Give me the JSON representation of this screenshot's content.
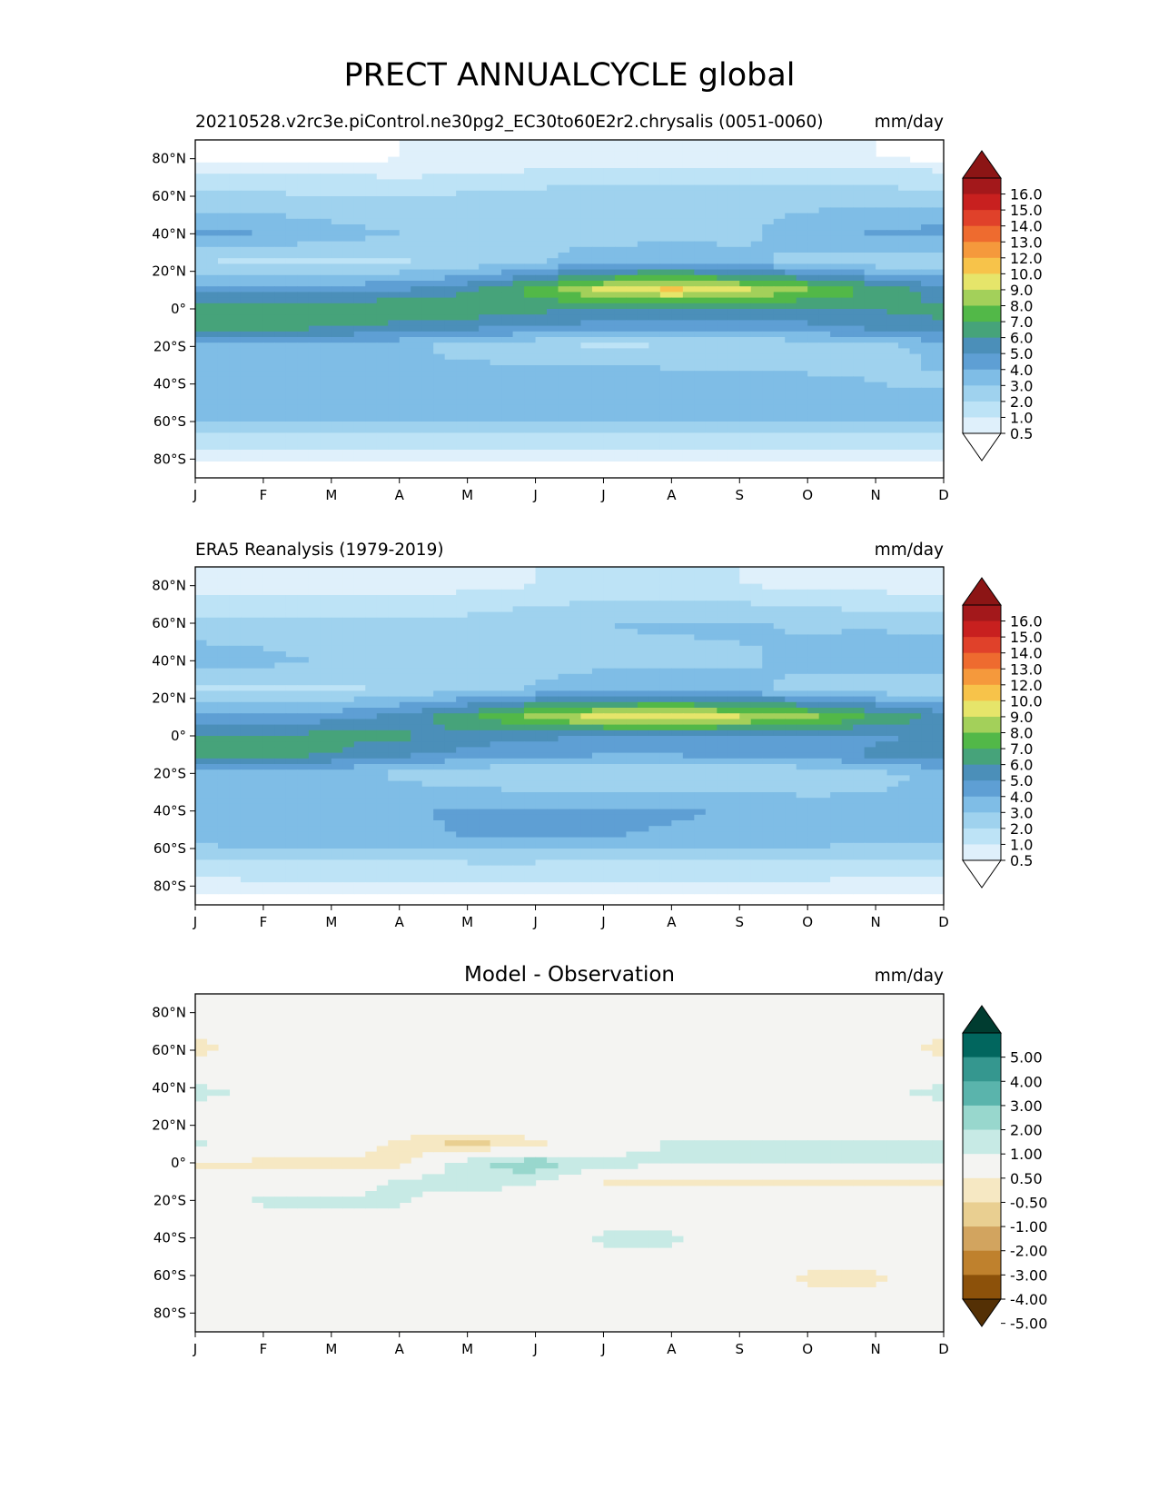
{
  "suptitle": "PRECT ANNUALCYCLE global",
  "chart_data": [
    {
      "type": "heatmap",
      "title_left": "20210528.v2rc3e.piControl.ne30pg2_EC30to60E2r2.chrysalis (0051-0060)",
      "title_center": "",
      "title_right": "mm/day",
      "x": [
        "J",
        "F",
        "M",
        "A",
        "M",
        "J",
        "J",
        "A",
        "S",
        "O",
        "N",
        "D"
      ],
      "y_ticks": [
        "80°N",
        "60°N",
        "40°N",
        "20°N",
        "0°",
        "20°S",
        "40°S",
        "60°S",
        "80°S"
      ],
      "ylim": [
        -90,
        90
      ],
      "y_tick_values": [
        80,
        60,
        40,
        20,
        0,
        -20,
        -40,
        -60,
        -80
      ],
      "colorbar": {
        "levels": [
          "0.5",
          "1.0",
          "2.0",
          "3.0",
          "4.0",
          "5.0",
          "6.0",
          "7.0",
          "8.0",
          "9.0",
          "10.0",
          "12.0",
          "13.0",
          "14.0",
          "15.0",
          "16.0"
        ],
        "colors": [
          "#ffffff",
          "#dff0fb",
          "#bde3f6",
          "#9fd2ee",
          "#7fbde6",
          "#5e9fd4",
          "#4b8fb9",
          "#46a37a",
          "#52b848",
          "#a3d05a",
          "#e6e56a",
          "#f7c34a",
          "#f5993c",
          "#ee6b2f",
          "#e0412a",
          "#c8201f",
          "#a3181b",
          "#8c1515"
        ],
        "extend": "both"
      },
      "bands": [
        {
          "lat": 80,
          "values": [
            0.3,
            0.3,
            0.3,
            0.5,
            0.5,
            0.5,
            0.6,
            0.6,
            0.6,
            0.6,
            0.5,
            0.4
          ]
        },
        {
          "lat": 70,
          "values": [
            1.2,
            1.2,
            1.1,
            1.0,
            1.1,
            1.3,
            1.6,
            1.7,
            1.6,
            1.5,
            1.4,
            1.3
          ]
        },
        {
          "lat": 60,
          "values": [
            2.2,
            2.2,
            2.0,
            2.0,
            2.2,
            2.5,
            2.8,
            2.9,
            2.9,
            2.7,
            2.6,
            2.4
          ]
        },
        {
          "lat": 40,
          "values": [
            4.3,
            4.0,
            3.5,
            3.0,
            2.8,
            2.6,
            2.6,
            2.6,
            2.8,
            3.4,
            4.2,
            4.4
          ]
        },
        {
          "lat": 25,
          "values": [
            2.0,
            1.8,
            1.7,
            1.9,
            2.3,
            2.9,
            3.6,
            3.8,
            3.3,
            2.7,
            2.2,
            2.0
          ]
        },
        {
          "lat": 10,
          "values": [
            4.6,
            4.5,
            4.5,
            4.9,
            5.8,
            7.4,
            9.5,
            10.3,
            9.4,
            8.2,
            6.8,
            5.4
          ]
        },
        {
          "lat": 0,
          "values": [
            6.5,
            6.6,
            6.7,
            7.1,
            6.8,
            6.3,
            5.8,
            5.4,
            5.6,
            5.9,
            6.1,
            6.2
          ]
        },
        {
          "lat": -10,
          "values": [
            6.6,
            6.4,
            6.0,
            5.6,
            5.2,
            4.8,
            4.6,
            4.5,
            4.5,
            4.7,
            5.2,
            5.9
          ]
        },
        {
          "lat": -20,
          "values": [
            3.8,
            3.8,
            3.6,
            3.2,
            2.6,
            2.0,
            1.8,
            1.9,
            2.0,
            2.2,
            2.6,
            3.3
          ]
        },
        {
          "lat": -40,
          "values": [
            3.0,
            3.0,
            3.1,
            3.3,
            3.7,
            4.0,
            4.0,
            3.8,
            3.6,
            3.3,
            3.0,
            2.9
          ]
        },
        {
          "lat": -55,
          "values": [
            3.5,
            3.6,
            3.7,
            3.8,
            3.8,
            3.8,
            3.8,
            3.7,
            3.6,
            3.5,
            3.5,
            3.5
          ]
        },
        {
          "lat": -70,
          "values": [
            1.4,
            1.5,
            1.5,
            1.5,
            1.5,
            1.5,
            1.4,
            1.4,
            1.4,
            1.4,
            1.4,
            1.4
          ]
        },
        {
          "lat": -85,
          "values": [
            0.3,
            0.3,
            0.3,
            0.3,
            0.3,
            0.3,
            0.3,
            0.3,
            0.3,
            0.3,
            0.3,
            0.3
          ]
        }
      ]
    },
    {
      "type": "heatmap",
      "title_left": "ERA5 Reanalysis (1979-2019)",
      "title_center": "",
      "title_right": "mm/day",
      "x": [
        "J",
        "F",
        "M",
        "A",
        "M",
        "J",
        "J",
        "A",
        "S",
        "O",
        "N",
        "D"
      ],
      "y_ticks": [
        "80°N",
        "60°N",
        "40°N",
        "20°N",
        "0°",
        "20°S",
        "40°S",
        "60°S",
        "80°S"
      ],
      "ylim": [
        -90,
        90
      ],
      "y_tick_values": [
        80,
        60,
        40,
        20,
        0,
        -20,
        -40,
        -60,
        -80
      ],
      "colorbar": {
        "levels": [
          "0.5",
          "1.0",
          "2.0",
          "3.0",
          "4.0",
          "5.0",
          "6.0",
          "7.0",
          "8.0",
          "9.0",
          "10.0",
          "12.0",
          "13.0",
          "14.0",
          "15.0",
          "16.0"
        ],
        "colors": [
          "#ffffff",
          "#dff0fb",
          "#bde3f6",
          "#9fd2ee",
          "#7fbde6",
          "#5e9fd4",
          "#4b8fb9",
          "#46a37a",
          "#52b848",
          "#a3d05a",
          "#e6e56a",
          "#f7c34a",
          "#f5993c",
          "#ee6b2f",
          "#e0412a",
          "#c8201f",
          "#a3181b",
          "#8c1515"
        ],
        "extend": "both"
      },
      "bands": [
        {
          "lat": 80,
          "values": [
            0.6,
            0.6,
            0.6,
            0.5,
            0.8,
            1.0,
            1.2,
            1.2,
            1.0,
            0.8,
            0.7,
            0.6
          ]
        },
        {
          "lat": 70,
          "values": [
            1.4,
            1.4,
            1.3,
            1.3,
            1.5,
            1.9,
            2.2,
            2.3,
            2.1,
            1.8,
            1.6,
            1.5
          ]
        },
        {
          "lat": 60,
          "values": [
            2.4,
            2.4,
            2.3,
            2.2,
            2.4,
            2.7,
            3.0,
            3.1,
            3.1,
            2.9,
            2.8,
            2.6
          ]
        },
        {
          "lat": 40,
          "values": [
            3.6,
            3.3,
            2.9,
            2.6,
            2.6,
            2.7,
            2.8,
            2.8,
            2.9,
            3.2,
            3.8,
            3.9
          ]
        },
        {
          "lat": 25,
          "values": [
            1.8,
            1.8,
            1.8,
            2.2,
            2.7,
            3.1,
            3.4,
            3.6,
            3.2,
            2.8,
            2.3,
            2.0
          ]
        },
        {
          "lat": 10,
          "values": [
            4.4,
            4.4,
            4.6,
            5.3,
            6.8,
            8.4,
            9.5,
            9.9,
            9.2,
            8.3,
            7.0,
            5.6
          ]
        },
        {
          "lat": 0,
          "values": [
            6.0,
            6.2,
            6.3,
            6.2,
            5.6,
            5.2,
            5.0,
            5.0,
            5.0,
            4.9,
            4.8,
            5.2
          ]
        },
        {
          "lat": -10,
          "values": [
            6.6,
            6.5,
            6.0,
            5.2,
            4.6,
            4.2,
            4.1,
            4.1,
            4.2,
            4.5,
            5.2,
            5.9
          ]
        },
        {
          "lat": -20,
          "values": [
            3.4,
            3.4,
            3.2,
            2.8,
            2.3,
            2.0,
            1.9,
            1.9,
            2.0,
            2.3,
            2.8,
            3.2
          ]
        },
        {
          "lat": -40,
          "values": [
            3.2,
            3.3,
            3.6,
            3.9,
            4.1,
            4.2,
            4.2,
            4.1,
            3.9,
            3.5,
            3.2,
            3.1
          ]
        },
        {
          "lat": -55,
          "values": [
            3.4,
            3.6,
            3.8,
            3.9,
            4.0,
            4.0,
            4.0,
            3.9,
            3.7,
            3.5,
            3.4,
            3.3
          ]
        },
        {
          "lat": -70,
          "values": [
            1.4,
            1.5,
            1.6,
            1.6,
            1.6,
            1.6,
            1.5,
            1.5,
            1.5,
            1.5,
            1.4,
            1.4
          ]
        },
        {
          "lat": -85,
          "values": [
            0.4,
            0.4,
            0.4,
            0.4,
            0.4,
            0.4,
            0.4,
            0.4,
            0.4,
            0.4,
            0.4,
            0.4
          ]
        }
      ]
    },
    {
      "type": "heatmap",
      "title_left": "",
      "title_center": "Model - Observation",
      "title_right": "mm/day",
      "x": [
        "J",
        "F",
        "M",
        "A",
        "M",
        "J",
        "J",
        "A",
        "S",
        "O",
        "N",
        "D"
      ],
      "y_ticks": [
        "80°N",
        "60°N",
        "40°N",
        "20°N",
        "0°",
        "20°S",
        "40°S",
        "60°S",
        "80°S"
      ],
      "ylim": [
        -90,
        90
      ],
      "y_tick_values": [
        80,
        60,
        40,
        20,
        0,
        -20,
        -40,
        -60,
        -80
      ],
      "colorbar": {
        "levels": [
          "5.00",
          "4.00",
          "3.00",
          "2.00",
          "1.00",
          "0.50",
          "-0.50",
          "-1.00",
          "-2.00",
          "-3.00",
          "-4.00",
          "-5.00"
        ],
        "colors": [
          "#003c30",
          "#01665e",
          "#35978f",
          "#5ab4ac",
          "#98d7cd",
          "#c7eae5",
          "#f4f4f2",
          "#f6e8c3",
          "#e9cf91",
          "#d2a45f",
          "#bf812d",
          "#8c510a",
          "#543005"
        ],
        "extend": "both"
      },
      "bands": [
        {
          "lat": 80,
          "values": [
            0,
            0,
            0,
            0,
            0,
            0,
            0,
            0,
            0,
            0,
            0,
            0
          ]
        },
        {
          "lat": 60,
          "values": [
            -0.7,
            -0.2,
            0,
            0,
            0,
            0,
            0,
            0,
            0,
            0,
            -0.2,
            -0.7
          ]
        },
        {
          "lat": 38,
          "values": [
            0.7,
            0.3,
            0,
            0,
            0,
            0,
            0,
            0,
            0,
            0,
            0.3,
            0.7
          ]
        },
        {
          "lat": 20,
          "values": [
            0,
            0,
            0,
            0,
            0,
            0,
            0,
            0,
            0,
            0,
            0,
            0
          ]
        },
        {
          "lat": 10,
          "values": [
            0.6,
            0,
            0,
            -0.6,
            -1.3,
            -0.6,
            0,
            0.6,
            0.6,
            0.7,
            0.7,
            0.6
          ]
        },
        {
          "lat": 0,
          "values": [
            -0.6,
            -0.6,
            -0.6,
            -0.8,
            0.9,
            1.4,
            0.8,
            0.6,
            0.6,
            0.6,
            0.6,
            0.6
          ]
        },
        {
          "lat": -10,
          "values": [
            0,
            0,
            0,
            0.6,
            0.9,
            0.6,
            -0.6,
            -0.6,
            -0.6,
            -0.7,
            -0.7,
            -0.7
          ]
        },
        {
          "lat": -20,
          "values": [
            0,
            0.6,
            0.6,
            0.6,
            0,
            0,
            0,
            0,
            0,
            0,
            0,
            0
          ]
        },
        {
          "lat": -40,
          "values": [
            0,
            0,
            0,
            0,
            0,
            0,
            0.6,
            0.6,
            0,
            0,
            0,
            0
          ]
        },
        {
          "lat": -62,
          "values": [
            0,
            0,
            0,
            0,
            0,
            0,
            0,
            0,
            0,
            -0.6,
            -0.6,
            0
          ]
        },
        {
          "lat": -85,
          "values": [
            0,
            0,
            0,
            0,
            0,
            0,
            0,
            0,
            0,
            0,
            0,
            0
          ]
        }
      ]
    }
  ]
}
